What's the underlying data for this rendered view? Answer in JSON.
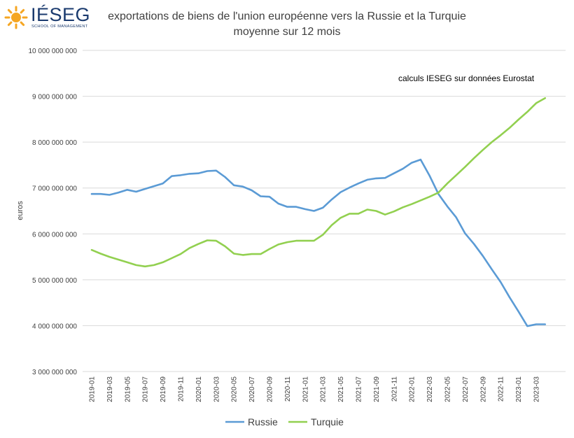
{
  "logo": {
    "brand": "IÉSEG",
    "subtitle": "SCHOOL OF MANAGEMENT"
  },
  "chart_data": {
    "type": "line",
    "title_line1": "exportations de biens de l'union européenne vers la Russie et la Turquie",
    "title_line2": "moyenne sur 12 mois",
    "annotation": "calculs IESEG sur données Eurostat",
    "ylabel": "euros",
    "ylim": [
      3000000000,
      10000000000
    ],
    "ytick_values": [
      3000000000,
      4000000000,
      5000000000,
      6000000000,
      7000000000,
      8000000000,
      9000000000,
      10000000000
    ],
    "ytick_labels": [
      "3 000 000 000",
      "4 000 000 000",
      "5 000 000 000",
      "6 000 000 000",
      "7 000 000 000",
      "8 000 000 000",
      "9 000 000 000",
      "10 000 000 000"
    ],
    "x": [
      "2019-01",
      "2019-02",
      "2019-03",
      "2019-04",
      "2019-05",
      "2019-06",
      "2019-07",
      "2019-08",
      "2019-09",
      "2019-10",
      "2019-11",
      "2019-12",
      "2020-01",
      "2020-02",
      "2020-03",
      "2020-04",
      "2020-05",
      "2020-06",
      "2020-07",
      "2020-08",
      "2020-09",
      "2020-10",
      "2020-11",
      "2020-12",
      "2021-01",
      "2021-02",
      "2021-03",
      "2021-04",
      "2021-05",
      "2021-06",
      "2021-07",
      "2021-08",
      "2021-09",
      "2021-10",
      "2021-11",
      "2021-12",
      "2022-01",
      "2022-02",
      "2022-03",
      "2022-04",
      "2022-05",
      "2022-06",
      "2022-07",
      "2022-08",
      "2022-09",
      "2022-10",
      "2022-11",
      "2022-12",
      "2023-01",
      "2023-02",
      "2023-03",
      "2023-04"
    ],
    "xtick_labels": [
      "2019-01",
      "2019-03",
      "2019-05",
      "2019-07",
      "2019-09",
      "2019-11",
      "2020-01",
      "2020-03",
      "2020-05",
      "2020-07",
      "2020-09",
      "2020-11",
      "2021-01",
      "2021-03",
      "2021-05",
      "2021-07",
      "2021-09",
      "2021-11",
      "2022-01",
      "2022-03",
      "2022-05",
      "2022-07",
      "2022-09",
      "2022-11",
      "2023-01",
      "2023-03"
    ],
    "grid": true,
    "legend_position": "bottom",
    "series": [
      {
        "name": "Russie",
        "color": "#5b9bd5",
        "values": [
          6870000000,
          6870000000,
          6850000000,
          6900000000,
          6960000000,
          6920000000,
          6980000000,
          7040000000,
          7100000000,
          7260000000,
          7280000000,
          7310000000,
          7320000000,
          7370000000,
          7380000000,
          7240000000,
          7060000000,
          7030000000,
          6950000000,
          6820000000,
          6810000000,
          6660000000,
          6590000000,
          6590000000,
          6540000000,
          6500000000,
          6570000000,
          6750000000,
          6910000000,
          7010000000,
          7100000000,
          7180000000,
          7210000000,
          7220000000,
          7320000000,
          7420000000,
          7550000000,
          7620000000,
          7270000000,
          6870000000,
          6600000000,
          6360000000,
          6010000000,
          5780000000,
          5520000000,
          5230000000,
          4950000000,
          4620000000,
          4310000000,
          3990000000,
          4030000000,
          4030000000
        ]
      },
      {
        "name": "Turquie",
        "color": "#92d050",
        "values": [
          5650000000,
          5570000000,
          5500000000,
          5440000000,
          5380000000,
          5320000000,
          5290000000,
          5320000000,
          5380000000,
          5470000000,
          5560000000,
          5690000000,
          5780000000,
          5860000000,
          5850000000,
          5730000000,
          5570000000,
          5540000000,
          5560000000,
          5560000000,
          5670000000,
          5770000000,
          5820000000,
          5850000000,
          5850000000,
          5850000000,
          5980000000,
          6190000000,
          6350000000,
          6440000000,
          6440000000,
          6530000000,
          6500000000,
          6420000000,
          6490000000,
          6580000000,
          6650000000,
          6730000000,
          6810000000,
          6900000000,
          7100000000,
          7280000000,
          7460000000,
          7650000000,
          7830000000,
          8000000000,
          8150000000,
          8310000000,
          8490000000,
          8660000000,
          8850000000,
          8960000000
        ]
      }
    ]
  }
}
